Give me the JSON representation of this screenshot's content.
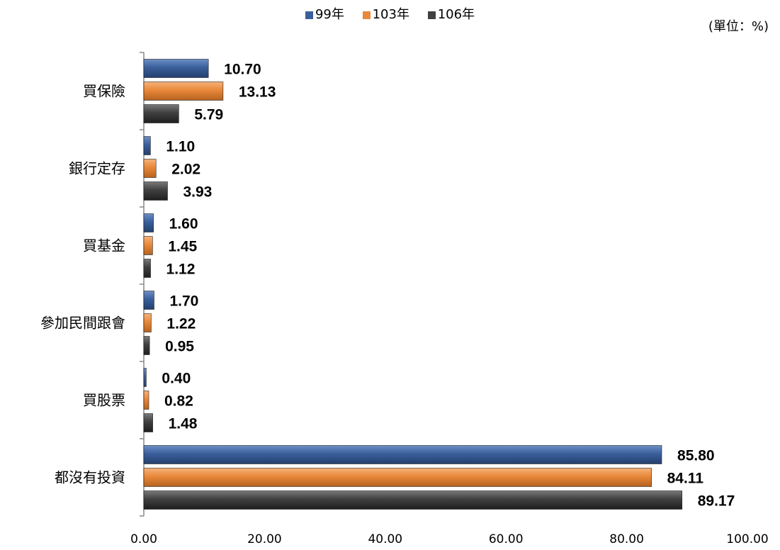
{
  "unit_note": "(單位：%)",
  "chart_data": {
    "type": "bar",
    "orientation": "horizontal",
    "categories": [
      "買保險",
      "銀行定存",
      "買基金",
      "參加民間跟會",
      "買股票",
      "都沒有投資"
    ],
    "series": [
      {
        "name": "99年",
        "color": "#3a5f9b",
        "values": [
          10.7,
          1.1,
          1.6,
          1.7,
          0.4,
          85.8
        ],
        "labels": [
          "10.70",
          "1.10",
          "1.60",
          "1.70",
          "0.40",
          "85.80"
        ]
      },
      {
        "name": "103年",
        "color": "#e8883a",
        "values": [
          13.13,
          2.02,
          1.45,
          1.22,
          0.82,
          84.11
        ],
        "labels": [
          "13.13",
          "2.02",
          "1.45",
          "1.22",
          "0.82",
          "84.11"
        ]
      },
      {
        "name": "106年",
        "color": "#404040",
        "values": [
          5.79,
          3.93,
          1.12,
          0.95,
          1.48,
          89.17
        ],
        "labels": [
          "5.79",
          "3.93",
          "1.12",
          "0.95",
          "1.48",
          "89.17"
        ]
      }
    ],
    "xlim": [
      0,
      100
    ],
    "xticks": [
      "0.00",
      "20.00",
      "40.00",
      "60.00",
      "80.00",
      "100.00"
    ],
    "legend": "top-center",
    "grid": false
  }
}
